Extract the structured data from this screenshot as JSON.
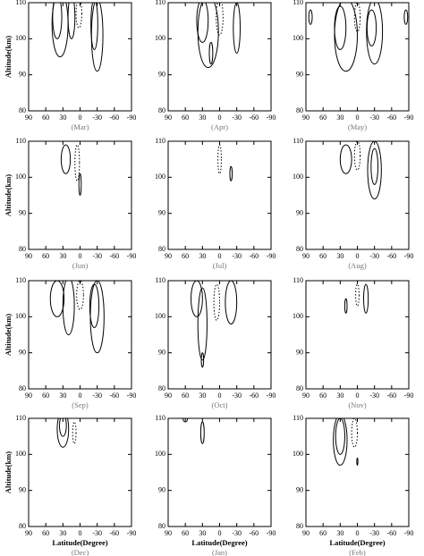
{
  "chart_data": [
    {
      "type": "contour",
      "title": "(Mar)",
      "ylabel": "Altitude(km)",
      "xlim": [
        90,
        -90
      ],
      "ylim": [
        80,
        110
      ],
      "xticks": [
        90,
        60,
        30,
        0,
        -30,
        -60,
        -90
      ],
      "yticks": [
        80,
        90,
        100,
        110
      ],
      "solid": [
        {
          "lat": 40,
          "alt": 106,
          "dlat": 8,
          "dalt": 6
        },
        {
          "lat": 35,
          "alt": 104,
          "dlat": 14,
          "dalt": 9
        },
        {
          "lat": 15,
          "alt": 106,
          "dlat": 6,
          "dalt": 6
        },
        {
          "lat": -25,
          "alt": 104,
          "dlat": 6,
          "dalt": 7
        },
        {
          "lat": -30,
          "alt": 101,
          "dlat": 10,
          "dalt": 10
        }
      ],
      "dashed": [
        {
          "lat": 2,
          "alt": 107,
          "dlat": 5,
          "dalt": 4
        }
      ]
    },
    {
      "type": "contour",
      "title": "(Apr)",
      "xlim": [
        90,
        -90
      ],
      "ylim": [
        80,
        110
      ],
      "xticks": [
        90,
        60,
        30,
        0,
        -30,
        -60,
        -90
      ],
      "yticks": [
        80,
        90,
        100,
        110
      ],
      "solid": [
        {
          "lat": 30,
          "alt": 105,
          "dlat": 10,
          "dalt": 6
        },
        {
          "lat": 20,
          "alt": 102,
          "dlat": 18,
          "dalt": 10
        },
        {
          "lat": -30,
          "alt": 103,
          "dlat": 6,
          "dalt": 7
        },
        {
          "lat": 15,
          "alt": 96,
          "dlat": 3,
          "dalt": 3
        }
      ],
      "dashed": [
        {
          "lat": 0,
          "alt": 106,
          "dlat": 6,
          "dalt": 5
        }
      ]
    },
    {
      "type": "contour",
      "title": "(May)",
      "xlim": [
        90,
        -90
      ],
      "ylim": [
        80,
        110
      ],
      "xticks": [
        90,
        60,
        30,
        0,
        -30,
        -60,
        -90
      ],
      "yticks": [
        80,
        90,
        100,
        110
      ],
      "solid": [
        {
          "lat": 30,
          "alt": 103,
          "dlat": 10,
          "dalt": 6
        },
        {
          "lat": 20,
          "alt": 101,
          "dlat": 20,
          "dalt": 10
        },
        {
          "lat": -25,
          "alt": 103,
          "dlat": 8,
          "dalt": 5
        },
        {
          "lat": -30,
          "alt": 102,
          "dlat": 14,
          "dalt": 9
        },
        {
          "lat": 82,
          "alt": 106,
          "dlat": 3,
          "dalt": 2
        },
        {
          "lat": -85,
          "alt": 106,
          "dlat": 3,
          "dalt": 2
        }
      ],
      "dashed": [
        {
          "lat": 0,
          "alt": 106,
          "dlat": 5,
          "dalt": 4
        }
      ]
    },
    {
      "type": "contour",
      "title": "(Jun)",
      "ylabel": "Altitude(km)",
      "xlim": [
        90,
        -90
      ],
      "ylim": [
        80,
        110
      ],
      "xticks": [
        90,
        60,
        30,
        0,
        -30,
        -60,
        -90
      ],
      "yticks": [
        80,
        90,
        100,
        110
      ],
      "solid": [
        {
          "lat": 25,
          "alt": 105,
          "dlat": 8,
          "dalt": 4
        },
        {
          "lat": 0,
          "alt": 98,
          "dlat": 2,
          "dalt": 3
        }
      ],
      "dashed": [
        {
          "lat": 5,
          "alt": 104,
          "dlat": 4,
          "dalt": 5
        }
      ]
    },
    {
      "type": "contour",
      "title": "(Jul)",
      "xlim": [
        90,
        -90
      ],
      "ylim": [
        80,
        110
      ],
      "xticks": [
        90,
        60,
        30,
        0,
        -30,
        -60,
        -90
      ],
      "yticks": [
        80,
        90,
        100,
        110
      ],
      "solid": [
        {
          "lat": -20,
          "alt": 101,
          "dlat": 2,
          "dalt": 2
        }
      ],
      "dashed": [
        {
          "lat": 0,
          "alt": 105,
          "dlat": 3,
          "dalt": 4
        }
      ]
    },
    {
      "type": "contour",
      "title": "(Aug)",
      "xlim": [
        90,
        -90
      ],
      "ylim": [
        80,
        110
      ],
      "xticks": [
        90,
        60,
        30,
        0,
        -30,
        -60,
        -90
      ],
      "yticks": [
        80,
        90,
        100,
        110
      ],
      "solid": [
        {
          "lat": 20,
          "alt": 105,
          "dlat": 10,
          "dalt": 4
        },
        {
          "lat": -30,
          "alt": 103,
          "dlat": 6,
          "dalt": 5
        },
        {
          "lat": -30,
          "alt": 102,
          "dlat": 12,
          "dalt": 8
        }
      ],
      "dashed": [
        {
          "lat": 0,
          "alt": 106,
          "dlat": 5,
          "dalt": 4
        }
      ]
    },
    {
      "type": "contour",
      "title": "(Sep)",
      "ylabel": "Altitude(km)",
      "xlim": [
        90,
        -90
      ],
      "ylim": [
        80,
        110
      ],
      "xticks": [
        90,
        60,
        30,
        0,
        -30,
        -60,
        -90
      ],
      "yticks": [
        80,
        90,
        100,
        110
      ],
      "solid": [
        {
          "lat": 40,
          "alt": 105,
          "dlat": 12,
          "dalt": 5
        },
        {
          "lat": 20,
          "alt": 103,
          "dlat": 10,
          "dalt": 8
        },
        {
          "lat": -25,
          "alt": 103,
          "dlat": 8,
          "dalt": 6
        },
        {
          "lat": -30,
          "alt": 100,
          "dlat": 12,
          "dalt": 10
        }
      ],
      "dashed": [
        {
          "lat": 0,
          "alt": 106,
          "dlat": 6,
          "dalt": 4
        }
      ]
    },
    {
      "type": "contour",
      "title": "(Oct)",
      "xlim": [
        90,
        -90
      ],
      "ylim": [
        80,
        110
      ],
      "xticks": [
        90,
        60,
        30,
        0,
        -30,
        -60,
        -90
      ],
      "yticks": [
        80,
        90,
        100,
        110
      ],
      "solid": [
        {
          "lat": 40,
          "alt": 105,
          "dlat": 10,
          "dalt": 5
        },
        {
          "lat": 30,
          "alt": 98,
          "dlat": 8,
          "dalt": 10
        },
        {
          "lat": -20,
          "alt": 104,
          "dlat": 10,
          "dalt": 6
        },
        {
          "lat": 30,
          "alt": 88,
          "dlat": 2,
          "dalt": 2
        }
      ],
      "dashed": [
        {
          "lat": 5,
          "alt": 104,
          "dlat": 5,
          "dalt": 5
        }
      ]
    },
    {
      "type": "contour",
      "title": "(Nov)",
      "xlim": [
        90,
        -90
      ],
      "ylim": [
        80,
        110
      ],
      "xticks": [
        90,
        60,
        30,
        0,
        -30,
        -60,
        -90
      ],
      "yticks": [
        80,
        90,
        100,
        110
      ],
      "solid": [
        {
          "lat": 20,
          "alt": 103,
          "dlat": 2,
          "dalt": 2
        },
        {
          "lat": -15,
          "alt": 105,
          "dlat": 4,
          "dalt": 4
        }
      ],
      "dashed": [
        {
          "lat": 0,
          "alt": 106,
          "dlat": 3,
          "dalt": 3
        }
      ]
    },
    {
      "type": "contour",
      "title": "(Dec)",
      "ylabel": "Altitude(km)",
      "xlabel": "Latitude(Degree)",
      "xlim": [
        90,
        -90
      ],
      "ylim": [
        80,
        110
      ],
      "xticks": [
        90,
        60,
        30,
        0,
        -30,
        -60,
        -90
      ],
      "yticks": [
        80,
        90,
        100,
        110
      ],
      "solid": [
        {
          "lat": 30,
          "alt": 108,
          "dlat": 6,
          "dalt": 3
        },
        {
          "lat": 30,
          "alt": 107,
          "dlat": 10,
          "dalt": 5
        }
      ],
      "dashed": [
        {
          "lat": 10,
          "alt": 106,
          "dlat": 3,
          "dalt": 3
        }
      ]
    },
    {
      "type": "contour",
      "title": "(Jan)",
      "xlabel": "Latitude(Degree)",
      "xlim": [
        90,
        -90
      ],
      "ylim": [
        80,
        110
      ],
      "xticks": [
        90,
        60,
        30,
        0,
        -30,
        -60,
        -90
      ],
      "yticks": [
        80,
        90,
        100,
        110
      ],
      "solid": [
        {
          "lat": 30,
          "alt": 106,
          "dlat": 3,
          "dalt": 3
        },
        {
          "lat": 60,
          "alt": 110,
          "dlat": 4,
          "dalt": 1
        }
      ],
      "dashed": []
    },
    {
      "type": "contour",
      "title": "(Feb)",
      "xlabel": "Latitude(Degree)",
      "xlim": [
        90,
        -90
      ],
      "ylim": [
        80,
        110
      ],
      "xticks": [
        90,
        60,
        30,
        0,
        -30,
        -60,
        -90
      ],
      "yticks": [
        80,
        90,
        100,
        110
      ],
      "solid": [
        {
          "lat": 30,
          "alt": 105,
          "dlat": 8,
          "dalt": 5
        },
        {
          "lat": 30,
          "alt": 104,
          "dlat": 12,
          "dalt": 7
        },
        {
          "lat": 0,
          "alt": 98,
          "dlat": 1,
          "dalt": 1
        }
      ],
      "dashed": [
        {
          "lat": 5,
          "alt": 106,
          "dlat": 5,
          "dalt": 4
        }
      ]
    }
  ]
}
